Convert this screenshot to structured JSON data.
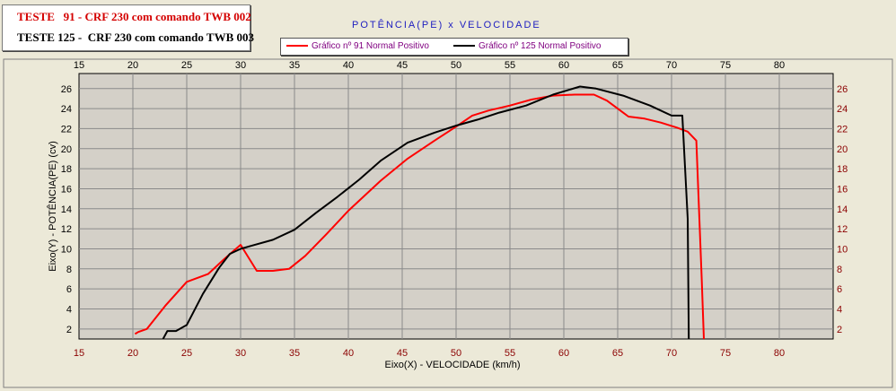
{
  "header": {
    "line1": "TESTE   91 - CRF 230 com comando TWB 002",
    "line2": "TESTE 125 -  CRF 230 com comando TWB 003"
  },
  "chart_data": {
    "type": "line",
    "title": "POTÊNCIA(PE)  x  VELOCIDADE",
    "xlabel": "Eixo(X) - VELOCIDADE (km/h)",
    "ylabel": "Eixo(Y) - POTÊNCIA(PE) (cv)",
    "xlim": [
      15,
      85
    ],
    "ylim": [
      1,
      27.5
    ],
    "xticks": [
      15,
      20,
      25,
      30,
      35,
      40,
      45,
      50,
      55,
      60,
      65,
      70,
      75,
      80
    ],
    "yticks": [
      2,
      4,
      6,
      8,
      10,
      12,
      14,
      16,
      18,
      20,
      22,
      24,
      26
    ],
    "grid": true,
    "legend_position": "top",
    "series": [
      {
        "name": "Gráfico nº 91 Normal Positivo",
        "color": "#ff0000",
        "x": [
          20.2,
          20.5,
          21.3,
          23,
          25,
          27,
          28.5,
          30,
          31.5,
          33,
          34.5,
          36,
          38,
          40,
          43,
          45.5,
          48,
          50,
          51.5,
          53,
          55,
          57,
          59,
          61,
          62.8,
          64,
          65,
          66,
          67.5,
          69,
          70.5,
          71.5,
          72.3,
          72.8,
          73
        ],
        "y": [
          1.5,
          1.7,
          2.0,
          4.3,
          6.7,
          7.5,
          9.0,
          10.4,
          7.8,
          7.8,
          8.0,
          9.3,
          11.5,
          13.8,
          16.8,
          19.0,
          20.8,
          22.2,
          23.3,
          23.8,
          24.3,
          24.9,
          25.3,
          25.4,
          25.4,
          24.8,
          24.0,
          23.2,
          23.0,
          22.6,
          22.1,
          21.7,
          20.8,
          7.0,
          1.0
        ]
      },
      {
        "name": "Gráfico nº 125 Normal Positivo",
        "color": "#000000",
        "x": [
          22.8,
          23.2,
          24,
          25,
          26.5,
          28,
          29,
          30,
          31,
          33,
          35,
          37,
          39,
          41,
          43,
          45.5,
          48,
          50,
          52,
          54,
          56.5,
          59,
          61.5,
          63,
          65.5,
          68,
          70,
          71,
          71.5,
          71.6
        ],
        "y": [
          1.0,
          1.8,
          1.8,
          2.4,
          5.5,
          8.1,
          9.5,
          10.0,
          10.3,
          10.9,
          11.9,
          13.6,
          15.2,
          16.9,
          18.8,
          20.6,
          21.6,
          22.3,
          22.9,
          23.6,
          24.3,
          25.4,
          26.2,
          26.0,
          25.3,
          24.3,
          23.3,
          23.3,
          13.0,
          1.0
        ]
      }
    ]
  }
}
